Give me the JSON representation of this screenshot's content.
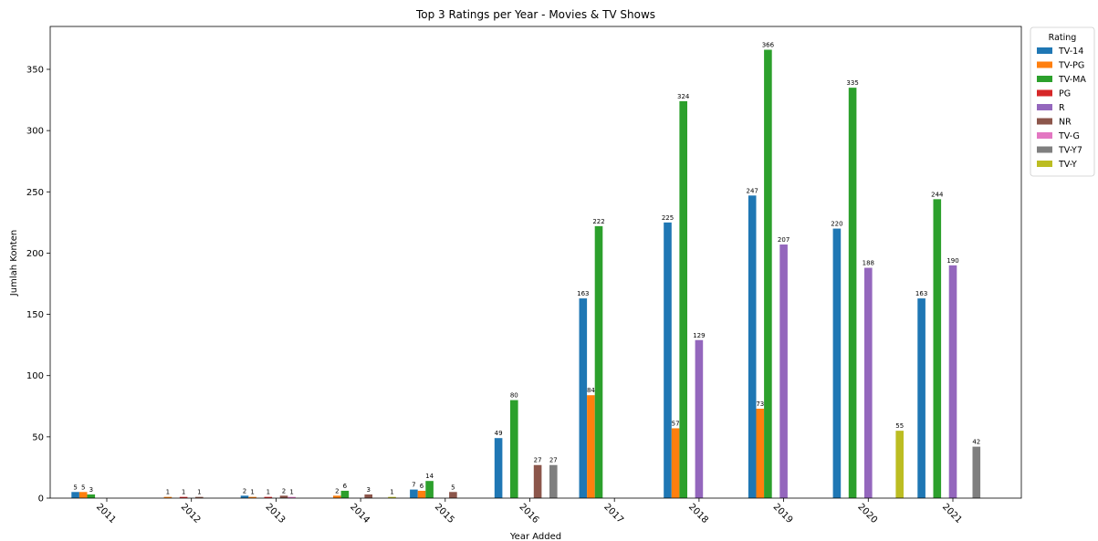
{
  "chart_data": {
    "type": "bar",
    "title": "Top 3 Ratings per Year - Movies & TV Shows",
    "xlabel": "Year Added",
    "ylabel": "Jumlah Konten",
    "ylim": [
      0,
      385
    ],
    "yticks": [
      0,
      50,
      100,
      150,
      200,
      250,
      300,
      350
    ],
    "categories": [
      "2011",
      "2012",
      "2013",
      "2014",
      "2015",
      "2016",
      "2017",
      "2018",
      "2019",
      "2020",
      "2021"
    ],
    "legend_title": "Rating",
    "legend_position": "upper right, outside",
    "series": [
      {
        "name": "TV-14",
        "color": "#1f77b4",
        "values": [
          5,
          0,
          2,
          0,
          7,
          49,
          163,
          225,
          247,
          220,
          163
        ]
      },
      {
        "name": "TV-PG",
        "color": "#ff7f0e",
        "values": [
          5,
          1,
          1,
          2,
          6,
          0,
          84,
          57,
          73,
          0,
          0
        ]
      },
      {
        "name": "TV-MA",
        "color": "#2ca02c",
        "values": [
          3,
          0,
          0,
          6,
          14,
          80,
          222,
          324,
          366,
          335,
          244
        ]
      },
      {
        "name": "PG",
        "color": "#d62728",
        "values": [
          0,
          1,
          1,
          0,
          0,
          0,
          0,
          0,
          0,
          0,
          0
        ]
      },
      {
        "name": "R",
        "color": "#9467bd",
        "values": [
          0,
          0,
          0,
          0,
          0,
          0,
          0,
          129,
          207,
          188,
          190
        ]
      },
      {
        "name": "NR",
        "color": "#8c564b",
        "values": [
          0,
          1,
          2,
          3,
          5,
          27,
          0,
          0,
          0,
          0,
          0
        ]
      },
      {
        "name": "TV-G",
        "color": "#e377c2",
        "values": [
          0,
          0,
          1,
          0,
          0,
          0,
          0,
          0,
          0,
          0,
          0
        ]
      },
      {
        "name": "TV-Y7",
        "color": "#7f7f7f",
        "values": [
          0,
          0,
          0,
          0,
          0,
          27,
          0,
          0,
          0,
          0,
          42
        ]
      },
      {
        "name": "TV-Y",
        "color": "#bcbd22",
        "values": [
          0,
          0,
          0,
          1,
          0,
          0,
          0,
          0,
          0,
          55,
          0
        ]
      }
    ]
  }
}
